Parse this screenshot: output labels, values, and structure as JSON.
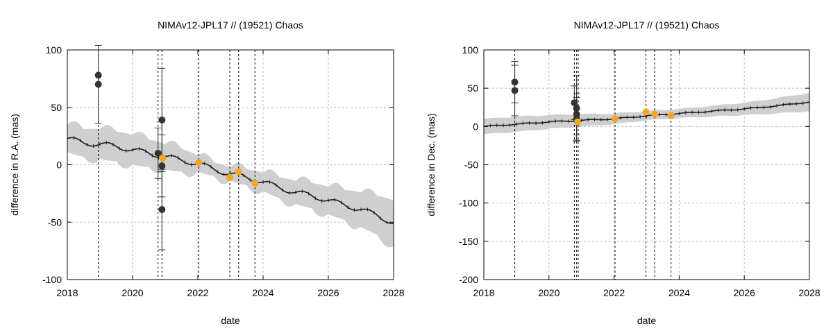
{
  "colors": {
    "band": "#cfcfcf",
    "line": "#1a1a1a",
    "dark_point": "#333333",
    "orange_point": "#f5a623",
    "grid": "#bbbbbb"
  },
  "chart_data": [
    {
      "type": "line",
      "title": "NIMAv12-JPL17 // (19521) Chaos",
      "xlabel": "date",
      "ylabel": "difference in R.A. (mas)",
      "xlim": [
        2018,
        2028
      ],
      "ylim": [
        -100,
        100
      ],
      "xticks": [
        2018,
        2020,
        2022,
        2024,
        2026,
        2028
      ],
      "yticks": [
        -100,
        -50,
        0,
        50,
        100
      ],
      "vlines": [
        2018.95,
        2020.78,
        2020.9,
        2022.03,
        2022.98,
        2023.25,
        2023.75
      ],
      "series": [
        {
          "name": "model",
          "x": [
            2018,
            2018.5,
            2019,
            2019.5,
            2020,
            2020.5,
            2021,
            2021.5,
            2022,
            2022.5,
            2023,
            2023.5,
            2024,
            2024.5,
            2025,
            2025.5,
            2026,
            2026.5,
            2027,
            2027.5,
            2028
          ],
          "y": [
            23,
            19,
            18,
            16,
            13,
            10,
            7,
            4,
            1,
            -4,
            -8,
            -11,
            -15,
            -20,
            -24,
            -27,
            -31,
            -35,
            -39,
            -44,
            -51
          ],
          "band": [
            12,
            12,
            13,
            13,
            13,
            12,
            11,
            10,
            7,
            6,
            6,
            7,
            8,
            9,
            10,
            11,
            12,
            13,
            15,
            17,
            20
          ]
        }
      ],
      "dark_points": [
        {
          "x": 2018.95,
          "y": 78,
          "err": 0
        },
        {
          "x": 2018.95,
          "y": 70,
          "err": 34
        },
        {
          "x": 2020.78,
          "y": 10,
          "err": 22
        },
        {
          "x": 2020.9,
          "y": 39,
          "err": 45
        },
        {
          "x": 2020.9,
          "y": -1,
          "err": 27
        },
        {
          "x": 2020.9,
          "y": -39,
          "err": 35
        }
      ],
      "orange_points": [
        {
          "x": 2020.92,
          "y": 6
        },
        {
          "x": 2022.03,
          "y": 2
        },
        {
          "x": 2022.98,
          "y": -11
        },
        {
          "x": 2023.25,
          "y": -6
        },
        {
          "x": 2023.75,
          "y": -16
        }
      ]
    },
    {
      "type": "line",
      "title": "NIMAv12-JPL17 // (19521) Chaos",
      "xlabel": "date",
      "ylabel": "difference in Dec. (mas)",
      "xlim": [
        2018,
        2028
      ],
      "ylim": [
        -200,
        100
      ],
      "xticks": [
        2018,
        2020,
        2022,
        2024,
        2026,
        2028
      ],
      "yticks": [
        -200,
        -150,
        -100,
        -50,
        0,
        50,
        100
      ],
      "vlines": [
        2018.95,
        2020.78,
        2020.85,
        2020.9,
        2022.03,
        2022.98,
        2023.25,
        2023.75
      ],
      "series": [
        {
          "name": "model",
          "x": [
            2018,
            2019,
            2020,
            2021,
            2022,
            2023,
            2024,
            2025,
            2026,
            2027,
            2028
          ],
          "y": [
            0,
            3,
            6,
            8,
            10,
            14,
            17,
            20,
            23,
            27,
            32
          ],
          "band": [
            10,
            10,
            9,
            8,
            7,
            6,
            6,
            7,
            8,
            10,
            12
          ]
        }
      ],
      "dark_points": [
        {
          "x": 2018.95,
          "y": 58,
          "err": 27
        },
        {
          "x": 2018.95,
          "y": 47,
          "err": 33
        },
        {
          "x": 2020.78,
          "y": 31,
          "err": 22
        },
        {
          "x": 2020.85,
          "y": 24,
          "err": 43
        },
        {
          "x": 2020.85,
          "y": 16,
          "err": 27
        },
        {
          "x": 2020.85,
          "y": 10,
          "err": 28
        }
      ],
      "orange_points": [
        {
          "x": 2020.88,
          "y": 6
        },
        {
          "x": 2022.03,
          "y": 10
        },
        {
          "x": 2022.98,
          "y": 19
        },
        {
          "x": 2023.25,
          "y": 16
        },
        {
          "x": 2023.75,
          "y": 14
        }
      ]
    }
  ]
}
